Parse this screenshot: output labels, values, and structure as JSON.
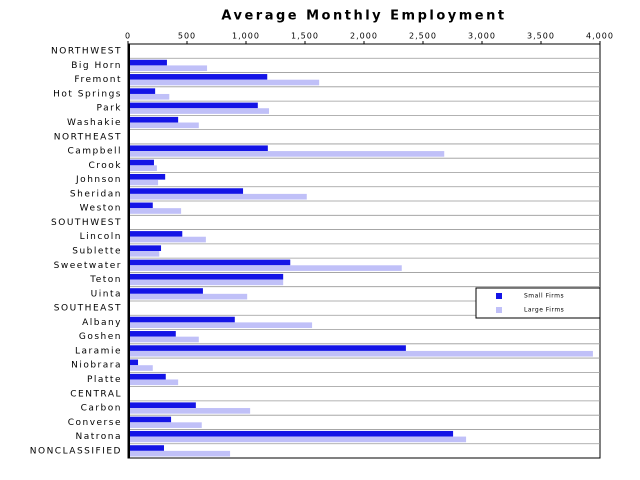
{
  "chart_data": {
    "type": "hbar",
    "title": "Average Monthly Employment",
    "categories": [
      "NORTHWEST",
      "Big Horn",
      "Fremont",
      "Hot Springs",
      "Park",
      "Washakie",
      "NORTHEAST",
      "Campbell",
      "Crook",
      "Johnson",
      "Sheridan",
      "Weston",
      "SOUTHWEST",
      "Lincoln",
      "Sublette",
      "Sweetwater",
      "Teton",
      "Uinta",
      "SOUTHEAST",
      "Albany",
      "Goshen",
      "Laramie",
      "Niobrara",
      "Platte",
      "CENTRAL",
      "Carbon",
      "Converse",
      "Natrona",
      "NONCLASSIFIED"
    ],
    "series": [
      {
        "name": "Small Firms",
        "color": "#1414e6",
        "values": [
          null,
          330,
          1180,
          230,
          1100,
          425,
          null,
          1185,
          220,
          315,
          975,
          210,
          null,
          460,
          280,
          1375,
          1315,
          635,
          null,
          905,
          405,
          2355,
          85,
          320,
          null,
          575,
          365,
          2755,
          305
        ]
      },
      {
        "name": "Large Firms",
        "color": "#c0c0f8",
        "values": [
          null,
          670,
          1620,
          350,
          1195,
          600,
          null,
          2680,
          245,
          255,
          1515,
          450,
          null,
          660,
          265,
          2320,
          1315,
          1010,
          null,
          1560,
          600,
          3940,
          210,
          425,
          null,
          1035,
          625,
          2865,
          865
        ]
      }
    ],
    "xlim": [
      0,
      4000
    ],
    "xticks": [
      0,
      500,
      {
        "value": 1000,
        "label": "1,000"
      },
      {
        "value": 1500,
        "label": "1,500"
      },
      {
        "value": 2000,
        "label": "2,000"
      },
      {
        "value": 2500,
        "label": "2,500"
      },
      {
        "value": 3000,
        "label": "3,000"
      },
      {
        "value": 3500,
        "label": "3,500"
      },
      {
        "value": 4000,
        "label": "4,000"
      }
    ],
    "grid": true
  }
}
